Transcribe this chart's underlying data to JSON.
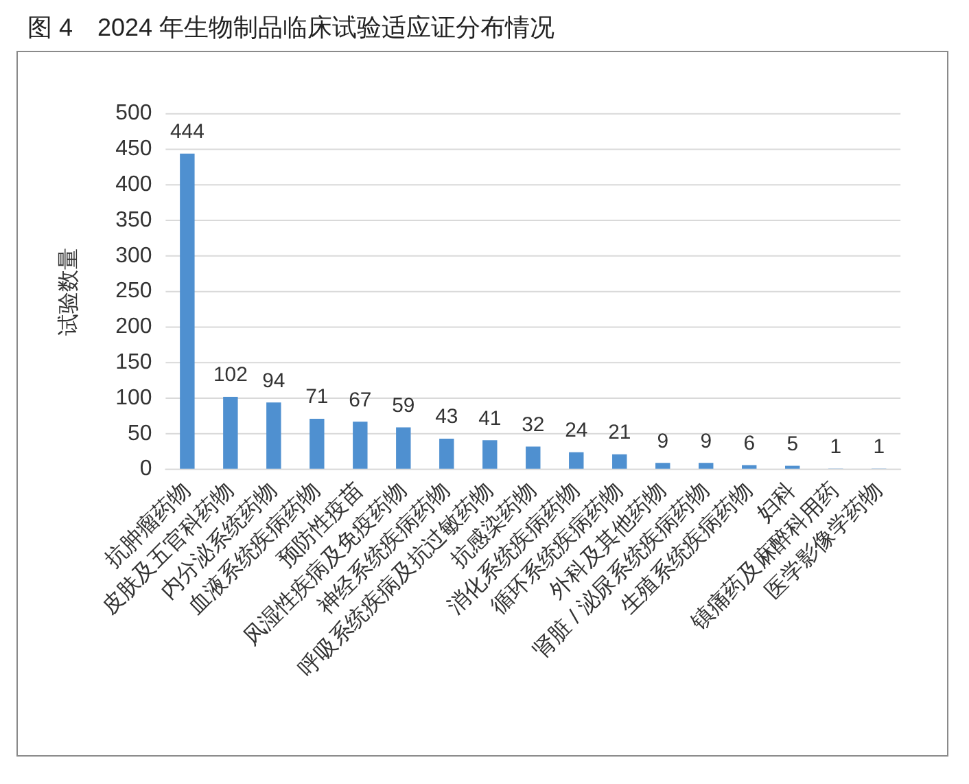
{
  "chart_data": {
    "type": "bar",
    "title": "图 4　2024 年生物制品临床试验适应证分布情况",
    "ylabel": "试验数量",
    "categories": [
      "抗肿瘤药物",
      "皮肤及五官科药物",
      "内分泌系统药物",
      "血液系统疾病药物",
      "预防性疫苗",
      "风湿性疾病及免疫药物",
      "神经系统疾病药物",
      "呼吸系统疾病及抗过敏药物",
      "抗感染药物",
      "消化系统疾病药物",
      "循环系统疾病药物",
      "外科及其他药物",
      "肾脏 / 泌尿系统疾病药物",
      "生殖系统疾病药物",
      "妇科",
      "镇痛药及麻醉科用药",
      "医学影像学药物"
    ],
    "values": [
      444,
      102,
      94,
      71,
      67,
      59,
      43,
      41,
      32,
      24,
      21,
      9,
      9,
      6,
      5,
      1,
      1
    ],
    "color": "#4f90d0",
    "ylim": [
      0,
      500
    ],
    "yticks": [
      0,
      50,
      100,
      150,
      200,
      250,
      300,
      350,
      400,
      450,
      500
    ],
    "grid": "y",
    "data_labels": true
  }
}
